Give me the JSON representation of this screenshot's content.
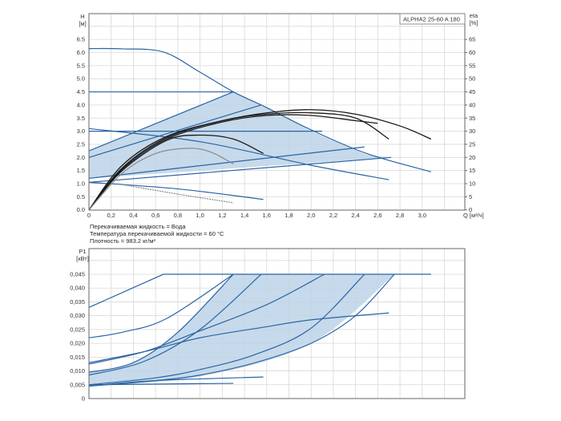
{
  "chart_data": [
    {
      "type": "line",
      "title": "ALPHA2 25-60 A 180",
      "ylabel": "H",
      "ylabel_unit": "[м]",
      "y2label": "eta",
      "y2label_unit": "[%]",
      "xlabel": "Q [м³/ч]",
      "xlim": [
        0,
        3.4
      ],
      "ylim": [
        0,
        7.5
      ],
      "y2lim": [
        0,
        75
      ],
      "grid": true,
      "x_ticks": [
        "0",
        "0,2",
        "0,4",
        "0,6",
        "0,8",
        "1,0",
        "1,2",
        "1,4",
        "1,6",
        "1,8",
        "2,0",
        "2,2",
        "2,4",
        "2,6",
        "2,8",
        "3,0"
      ],
      "y_ticks": [
        "0.0",
        "0.5",
        "1.0",
        "1.5",
        "2.0",
        "2.5",
        "3.0",
        "3.5",
        "4.0",
        "4.5",
        "5.0",
        "5.5",
        "6.0",
        "6.5"
      ],
      "y2_ticks": [
        "0",
        "5",
        "10",
        "15",
        "20",
        "25",
        "30",
        "35",
        "40",
        "45",
        "50",
        "55",
        "60",
        "65"
      ],
      "shaded_region": [
        [
          0,
          2.25
        ],
        [
          1.3,
          4.5
        ],
        [
          1.6,
          3.9
        ],
        [
          2.0,
          3.0
        ],
        [
          2.5,
          2.1
        ],
        [
          2.72,
          2.0
        ],
        [
          0,
          1.2
        ]
      ],
      "series": [
        {
          "name": "max-curve",
          "kind": "head",
          "points": [
            [
              0,
              6.15
            ],
            [
              0.3,
              6.14
            ],
            [
              0.67,
              6.02
            ],
            [
              1.0,
              5.25
            ],
            [
              1.3,
              4.5
            ],
            [
              1.6,
              3.9
            ],
            [
              2.0,
              3.05
            ],
            [
              2.5,
              2.15
            ],
            [
              3.08,
              1.45
            ]
          ]
        },
        {
          "name": "const-pressure-4.5",
          "kind": "head",
          "points": [
            [
              0,
              4.5
            ],
            [
              1.3,
              4.5
            ]
          ]
        },
        {
          "name": "const-pressure-3.0",
          "kind": "head",
          "points": [
            [
              0,
              3.0
            ],
            [
              2.1,
              3.0
            ]
          ]
        },
        {
          "name": "descending-3.1",
          "kind": "head",
          "points": [
            [
              0,
              3.1
            ],
            [
              1.0,
              2.6
            ],
            [
              2.0,
              1.7
            ],
            [
              2.7,
              1.15
            ]
          ]
        },
        {
          "name": "prop-pressure-high",
          "kind": "head",
          "points": [
            [
              0,
              2.25
            ],
            [
              1.3,
              4.5
            ]
          ]
        },
        {
          "name": "prop-pressure-mid",
          "kind": "head",
          "points": [
            [
              0,
              2.0
            ],
            [
              1.55,
              4.0
            ]
          ]
        },
        {
          "name": "prop-pressure-low-1",
          "kind": "head",
          "points": [
            [
              0,
              1.2
            ],
            [
              2.48,
              2.4
            ]
          ]
        },
        {
          "name": "prop-pressure-low-2",
          "kind": "head",
          "points": [
            [
              0,
              1.05
            ],
            [
              2.72,
              2.0
            ]
          ]
        },
        {
          "name": "min-curve",
          "kind": "head",
          "points": [
            [
              0,
              1.05
            ],
            [
              0.8,
              0.8
            ],
            [
              1.57,
              0.4
            ]
          ]
        },
        {
          "name": "min-curve-dashed",
          "kind": "head-dashed",
          "points": [
            [
              0.25,
              1.0
            ],
            [
              0.8,
              0.6
            ],
            [
              1.3,
              0.27
            ]
          ]
        },
        {
          "name": "eta-1",
          "kind": "eta",
          "points": [
            [
              0,
              0
            ],
            [
              0.3,
              17
            ],
            [
              0.7,
              28
            ],
            [
              1.2,
              34
            ],
            [
              1.6,
              37
            ],
            [
              2.0,
              38.2
            ],
            [
              2.4,
              36.5
            ],
            [
              2.8,
              32
            ],
            [
              3.08,
              27
            ]
          ]
        },
        {
          "name": "eta-2",
          "kind": "eta",
          "points": [
            [
              0,
              0
            ],
            [
              0.3,
              16
            ],
            [
              0.7,
              27.5
            ],
            [
              1.2,
              34
            ],
            [
              1.6,
              36.5
            ],
            [
              2.0,
              37
            ],
            [
              2.4,
              35
            ],
            [
              2.7,
              27
            ]
          ]
        },
        {
          "name": "eta-3",
          "kind": "eta",
          "points": [
            [
              0,
              0
            ],
            [
              0.3,
              15.5
            ],
            [
              0.7,
              27
            ],
            [
              1.2,
              33.5
            ],
            [
              1.6,
              36
            ],
            [
              2.0,
              36
            ],
            [
              2.4,
              34
            ],
            [
              2.6,
              33
            ]
          ]
        },
        {
          "name": "eta-4",
          "kind": "eta",
          "points": [
            [
              0,
              0
            ],
            [
              0.3,
              15
            ],
            [
              0.7,
              26.5
            ],
            [
              1.0,
              28.5
            ],
            [
              1.3,
              27
            ],
            [
              1.57,
              21.5
            ]
          ]
        },
        {
          "name": "eta-5",
          "kind": "eta-grey",
          "points": [
            [
              0,
              0
            ],
            [
              0.3,
              14
            ],
            [
              0.6,
              21.5
            ],
            [
              0.9,
              23.5
            ],
            [
              1.1,
              22
            ],
            [
              1.3,
              17.5
            ]
          ]
        }
      ],
      "notes": [
        "Перекачиваемая жидкость = Вода",
        "Температура перекачиваемой жидкости = 60 °C",
        "Плотность = 983.2 кг/м³"
      ]
    },
    {
      "type": "line",
      "ylabel": "P1",
      "ylabel_unit": "[кВт]",
      "xlim": [
        0,
        3.4
      ],
      "ylim": [
        0,
        0.054
      ],
      "grid": true,
      "y_ticks": [
        "0",
        "0,005",
        "0,010",
        "0,015",
        "0,020",
        "0,025",
        "0,030",
        "0,035",
        "0,040",
        "0,045"
      ],
      "shaded_region": [
        [
          0,
          0.0095
        ],
        [
          0.4,
          0.013
        ],
        [
          0.8,
          0.024
        ],
        [
          1.3,
          0.045
        ],
        [
          2.75,
          0.045
        ],
        [
          2.0,
          0.02
        ],
        [
          1.0,
          0.008
        ],
        [
          0,
          0.0045
        ]
      ],
      "series": [
        {
          "name": "max-power",
          "points": [
            [
              0,
              0.033
            ],
            [
              0.67,
              0.045
            ],
            [
              3.08,
              0.045
            ]
          ]
        },
        {
          "name": "p-const-4.5",
          "points": [
            [
              0,
              0.022
            ],
            [
              0.3,
              0.024
            ],
            [
              0.7,
              0.029
            ],
            [
              1.3,
              0.045
            ]
          ]
        },
        {
          "name": "p-prop-high",
          "points": [
            [
              0,
              0.0095
            ],
            [
              0.4,
              0.013
            ],
            [
              0.8,
              0.024
            ],
            [
              1.3,
              0.045
            ]
          ]
        },
        {
          "name": "p-prop-mid",
          "points": [
            [
              0,
              0.0085
            ],
            [
              0.5,
              0.0135
            ],
            [
              1.0,
              0.025
            ],
            [
              1.55,
              0.045
            ]
          ]
        },
        {
          "name": "p-descending",
          "points": [
            [
              0,
              0.013
            ],
            [
              0.5,
              0.017
            ],
            [
              1.0,
              0.022
            ],
            [
              1.6,
              0.026
            ],
            [
              2.0,
              0.0285
            ],
            [
              2.7,
              0.031
            ]
          ]
        },
        {
          "name": "p-const-3.0",
          "points": [
            [
              0,
              0.0125
            ],
            [
              0.5,
              0.017
            ],
            [
              1.0,
              0.0245
            ],
            [
              1.6,
              0.034
            ],
            [
              2.12,
              0.045
            ]
          ]
        },
        {
          "name": "p-prop-low-1",
          "points": [
            [
              0,
              0.005
            ],
            [
              0.6,
              0.0075
            ],
            [
              1.0,
              0.0105
            ],
            [
              1.5,
              0.016
            ],
            [
              2.0,
              0.0255
            ],
            [
              2.48,
              0.045
            ]
          ]
        },
        {
          "name": "p-prop-low-2",
          "points": [
            [
              0,
              0.0045
            ],
            [
              0.6,
              0.0065
            ],
            [
              1.0,
              0.0085
            ],
            [
              1.5,
              0.013
            ],
            [
              2.0,
              0.02
            ],
            [
              2.4,
              0.03
            ],
            [
              2.75,
              0.045
            ]
          ]
        },
        {
          "name": "p-min",
          "points": [
            [
              0,
              0.0045
            ],
            [
              0.6,
              0.0065
            ],
            [
              1.57,
              0.0078
            ]
          ]
        },
        {
          "name": "p-min-2",
          "points": [
            [
              0,
              0.005
            ],
            [
              1.3,
              0.0055
            ]
          ]
        }
      ]
    }
  ],
  "colors": {
    "line": "#2b64a3",
    "fill": "#bcd4e7",
    "eta": "#1a1a1a",
    "eta_grey": "#8a8a8a",
    "grid": "#d8d8d8"
  }
}
